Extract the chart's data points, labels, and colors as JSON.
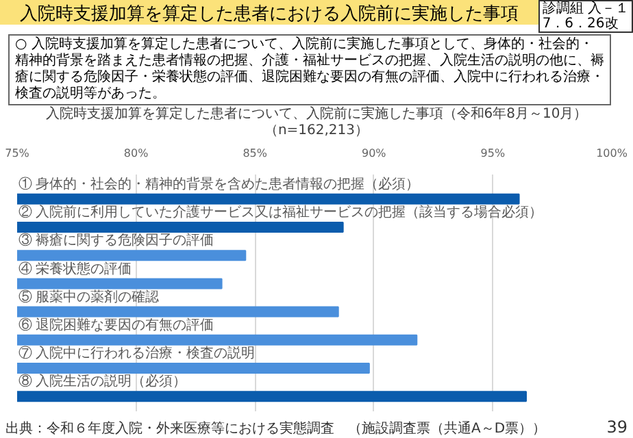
{
  "chart_data": {
    "type": "bar",
    "orientation": "horizontal",
    "title": "入院時支援加算を算定した患者における入院前に実施した事項",
    "subtitle": "入院時支援加算を算定した患者について、入院前に実施した事項（令和6年8月～10月）（n=162,213）",
    "annotations": [
      "診調組 入－１\n7．6．26改",
      "○ 入院時支援加算を算定した患者について、入院前に実施した事項として、身体的・社会的・精神的背景を踏まえた患者情報の把握、介護・福祉サービスの把握、入院生活の説明の他に、褥瘡に関する危険因子・栄養状態の評価、退院困難な要因の有無の評価、入院中に行われる治療・検査の説明等があった。",
      "出典：令和６年度入院・外来医療等における実態調査　（施設調査票（共通A～D票））",
      "39"
    ],
    "categories": [
      "① 身体的・社会的・精神的背景を含めた患者情報の把握（必須）",
      "② 入院前に利用していた介護サービス又は福祉サービスの把握（該当する場合必須）",
      "③ 褥瘡に関する危険因子の評価",
      "④ 栄養状態の評価",
      "⑤ 服薬中の薬剤の確認",
      "⑥ 退院困難な要因の有無の評価",
      "⑦ 入院中に行われる治療・検査の説明",
      "⑧ 入院生活の説明（必須）"
    ],
    "values": [
      96.1,
      88.7,
      84.6,
      83.6,
      88.5,
      91.8,
      89.8,
      96.4
    ],
    "colors": [
      "#0b5cad",
      "#0b5cad",
      "#4a8fdc",
      "#4a8fdc",
      "#4a8fdc",
      "#4a8fdc",
      "#4a8fdc",
      "#0b5cad"
    ],
    "xlim": [
      75,
      100
    ],
    "xticks": [
      {
        "value": 75,
        "label": "75%"
      },
      {
        "value": 80,
        "label": "80%"
      },
      {
        "value": 85,
        "label": "85%"
      },
      {
        "value": 90,
        "label": "90%"
      },
      {
        "value": 95,
        "label": "95%"
      },
      {
        "value": 100,
        "label": "100%"
      }
    ],
    "grid": "x"
  }
}
